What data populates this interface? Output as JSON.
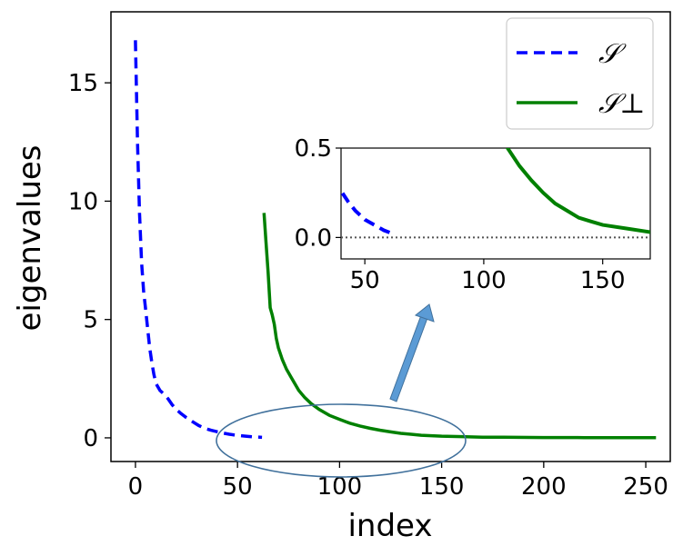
{
  "chart_data": {
    "type": "line",
    "xlabel": "index",
    "ylabel": "eigenvalues",
    "xlim": [
      -12,
      262
    ],
    "ylim": [
      -1.0,
      18.0
    ],
    "xticks": [
      0,
      50,
      100,
      150,
      200,
      250
    ],
    "yticks": [
      0,
      5,
      10,
      15
    ],
    "legend_placement": "top-right",
    "grid": false,
    "series": [
      {
        "name": "𝒮",
        "style": "dashed",
        "color": "#0000ff",
        "points": [
          [
            0,
            16.8
          ],
          [
            1,
            12.5
          ],
          [
            2,
            9.5
          ],
          [
            3,
            7.4
          ],
          [
            4,
            6.2
          ],
          [
            5,
            5.4
          ],
          [
            6,
            4.6
          ],
          [
            7,
            3.8
          ],
          [
            8,
            3.2
          ],
          [
            9,
            2.7
          ],
          [
            10,
            2.3
          ],
          [
            12,
            2.0
          ],
          [
            14,
            1.85
          ],
          [
            16,
            1.65
          ],
          [
            18,
            1.4
          ],
          [
            20,
            1.2
          ],
          [
            22,
            1.05
          ],
          [
            25,
            0.85
          ],
          [
            28,
            0.68
          ],
          [
            31,
            0.52
          ],
          [
            34,
            0.4
          ],
          [
            37,
            0.32
          ],
          [
            40,
            0.26
          ],
          [
            43,
            0.2
          ],
          [
            46,
            0.15
          ],
          [
            50,
            0.1
          ],
          [
            54,
            0.07
          ],
          [
            58,
            0.04
          ],
          [
            62,
            0.02
          ]
        ]
      },
      {
        "name": "𝒮⊥",
        "style": "solid",
        "color": "#008000",
        "points": [
          [
            63,
            9.5
          ],
          [
            64,
            8.2
          ],
          [
            65,
            7.0
          ],
          [
            66,
            5.5
          ],
          [
            67,
            5.2
          ],
          [
            68,
            4.8
          ],
          [
            69,
            4.2
          ],
          [
            70,
            3.8
          ],
          [
            72,
            3.3
          ],
          [
            74,
            2.9
          ],
          [
            76,
            2.6
          ],
          [
            78,
            2.3
          ],
          [
            80,
            2.0
          ],
          [
            83,
            1.7
          ],
          [
            86,
            1.45
          ],
          [
            90,
            1.2
          ],
          [
            95,
            0.95
          ],
          [
            100,
            0.78
          ],
          [
            105,
            0.62
          ],
          [
            110,
            0.5
          ],
          [
            115,
            0.4
          ],
          [
            120,
            0.32
          ],
          [
            125,
            0.25
          ],
          [
            130,
            0.19
          ],
          [
            135,
            0.15
          ],
          [
            140,
            0.11
          ],
          [
            145,
            0.09
          ],
          [
            150,
            0.07
          ],
          [
            160,
            0.05
          ],
          [
            170,
            0.03
          ],
          [
            180,
            0.025
          ],
          [
            200,
            0.015
          ],
          [
            220,
            0.01
          ],
          [
            240,
            0.006
          ],
          [
            255,
            0.004
          ]
        ]
      }
    ],
    "inset": {
      "xlim": [
        40,
        170
      ],
      "ylim": [
        -0.12,
        0.5
      ],
      "xticks": [
        50,
        100,
        150
      ],
      "yticks": [
        0.0,
        0.5
      ],
      "ytick_labels": [
        "0.0",
        "0.5"
      ],
      "reference_line": {
        "y": 0.0,
        "style": "dotted",
        "color": "#555555"
      }
    },
    "annotation": {
      "type": "ellipse-with-arrow",
      "outline_color": "#41719c",
      "arrow_color": "#5b9bd5"
    }
  }
}
